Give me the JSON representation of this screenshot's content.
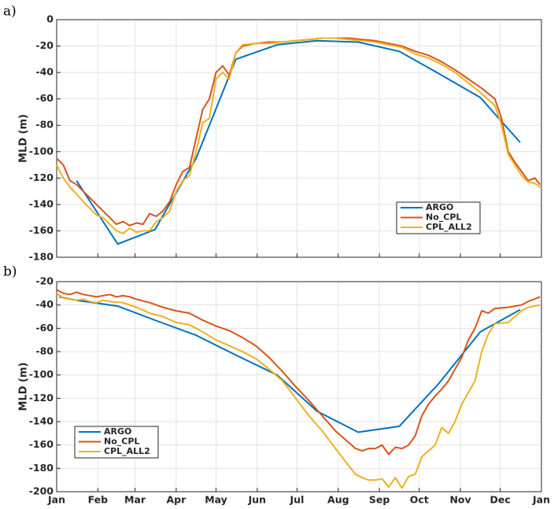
{
  "chart_data": [
    {
      "type": "line",
      "panel_label": "a)",
      "ylabel": "MLD (m)",
      "xlim": [
        0,
        365
      ],
      "xticks": [
        0,
        31,
        59,
        90,
        120,
        151,
        181,
        212,
        243,
        273,
        304,
        334,
        365
      ],
      "ylim": [
        -180,
        0
      ],
      "yticks": [
        0,
        -20,
        -40,
        -60,
        -80,
        -100,
        -120,
        -140,
        -160,
        -180
      ],
      "grid": true,
      "legend": "lower right",
      "series": [
        {
          "name": "ARGO",
          "color": "#0072BD",
          "x": [
            15,
            46,
            74,
            105,
            135,
            166,
            196,
            227,
            258,
            288,
            319,
            349
          ],
          "values": [
            -122,
            -170,
            -159,
            -105,
            -30,
            -19,
            -16,
            -17,
            -24,
            -41,
            -59,
            -93
          ]
        },
        {
          "name": "No_CPL",
          "color": "#D95319",
          "x": [
            0,
            5,
            10,
            15,
            20,
            25,
            30,
            35,
            40,
            45,
            50,
            55,
            60,
            65,
            70,
            75,
            80,
            85,
            90,
            95,
            100,
            105,
            110,
            115,
            120,
            125,
            130,
            135,
            140,
            150,
            160,
            170,
            180,
            190,
            200,
            210,
            220,
            230,
            240,
            250,
            260,
            270,
            280,
            290,
            300,
            310,
            320,
            330,
            335,
            340,
            345,
            350,
            355,
            360,
            364
          ],
          "values": [
            -105,
            -110,
            -122,
            -125,
            -130,
            -135,
            -140,
            -145,
            -150,
            -155,
            -153,
            -156,
            -154,
            -155,
            -147,
            -149,
            -145,
            -138,
            -125,
            -115,
            -112,
            -90,
            -68,
            -60,
            -40,
            -35,
            -42,
            -25,
            -20,
            -18,
            -17,
            -17,
            -16,
            -15,
            -14,
            -14,
            -14,
            -15,
            -16,
            -18,
            -20,
            -24,
            -27,
            -32,
            -38,
            -45,
            -52,
            -60,
            -75,
            -100,
            -108,
            -115,
            -122,
            -120,
            -125
          ]
        },
        {
          "name": "CPL_ALL2",
          "color": "#EDB120",
          "x": [
            0,
            5,
            10,
            15,
            20,
            25,
            30,
            35,
            40,
            45,
            50,
            55,
            60,
            65,
            70,
            75,
            80,
            85,
            90,
            95,
            100,
            105,
            110,
            115,
            120,
            125,
            130,
            135,
            140,
            150,
            160,
            170,
            180,
            190,
            200,
            210,
            220,
            230,
            240,
            250,
            260,
            270,
            280,
            290,
            300,
            310,
            320,
            330,
            335,
            340,
            345,
            350,
            355,
            360,
            364
          ],
          "values": [
            -110,
            -120,
            -127,
            -132,
            -138,
            -143,
            -148,
            -150,
            -155,
            -160,
            -162,
            -158,
            -161,
            -160,
            -160,
            -153,
            -150,
            -145,
            -130,
            -122,
            -118,
            -100,
            -78,
            -75,
            -45,
            -40,
            -45,
            -25,
            -19,
            -18,
            -18,
            -17,
            -16,
            -15,
            -14,
            -14,
            -15,
            -16,
            -17,
            -19,
            -21,
            -26,
            -29,
            -34,
            -40,
            -48,
            -56,
            -65,
            -80,
            -102,
            -110,
            -118,
            -123,
            -124,
            -127
          ]
        }
      ]
    },
    {
      "type": "line",
      "panel_label": "b)",
      "ylabel": "MLD (m)",
      "xlim": [
        0,
        365
      ],
      "xticks": [
        {
          "value": 0,
          "label": "Jan"
        },
        {
          "value": 31,
          "label": "Feb"
        },
        {
          "value": 59,
          "label": "Mar"
        },
        {
          "value": 90,
          "label": "Apr"
        },
        {
          "value": 120,
          "label": "May"
        },
        {
          "value": 151,
          "label": "Jun"
        },
        {
          "value": 181,
          "label": "Jul"
        },
        {
          "value": 212,
          "label": "Aug"
        },
        {
          "value": 243,
          "label": "Sep"
        },
        {
          "value": 273,
          "label": "Oct"
        },
        {
          "value": 304,
          "label": "Nov"
        },
        {
          "value": 334,
          "label": "Dec"
        },
        {
          "value": 365,
          "label": "Jan"
        }
      ],
      "ylim": [
        -200,
        -20
      ],
      "yticks": [
        -20,
        -40,
        -60,
        -80,
        -100,
        -120,
        -140,
        -160,
        -180,
        -200
      ],
      "grid": true,
      "legend": "lower left",
      "series": [
        {
          "name": "ARGO",
          "color": "#0072BD",
          "x": [
            2,
            15,
            46,
            74,
            105,
            135,
            166,
            196,
            227,
            258,
            288,
            319,
            349
          ],
          "values": [
            -33,
            -36,
            -41,
            -53,
            -66,
            -83,
            -100,
            -131,
            -149,
            -144,
            -107,
            -63,
            -44
          ]
        },
        {
          "name": "No_CPL",
          "color": "#D95319",
          "x": [
            0,
            5,
            10,
            15,
            20,
            25,
            30,
            35,
            40,
            45,
            50,
            55,
            60,
            70,
            80,
            90,
            100,
            110,
            120,
            130,
            140,
            150,
            160,
            170,
            180,
            190,
            200,
            210,
            220,
            225,
            230,
            235,
            240,
            245,
            250,
            255,
            260,
            265,
            270,
            275,
            280,
            285,
            290,
            295,
            300,
            305,
            310,
            315,
            320,
            325,
            330,
            340,
            350,
            355,
            364
          ],
          "values": [
            -27,
            -30,
            -31,
            -29,
            -31,
            -32,
            -33,
            -32,
            -31,
            -33,
            -32,
            -33,
            -35,
            -38,
            -42,
            -45,
            -47,
            -53,
            -58,
            -62,
            -68,
            -75,
            -85,
            -97,
            -110,
            -122,
            -135,
            -148,
            -158,
            -163,
            -165,
            -163,
            -163,
            -160,
            -168,
            -162,
            -163,
            -160,
            -152,
            -135,
            -125,
            -118,
            -112,
            -105,
            -95,
            -85,
            -70,
            -60,
            -45,
            -47,
            -43,
            -42,
            -40,
            -37,
            -33
          ]
        },
        {
          "name": "CPL_ALL2",
          "color": "#EDB120",
          "x": [
            0,
            5,
            10,
            15,
            20,
            25,
            30,
            35,
            40,
            50,
            60,
            70,
            80,
            90,
            100,
            110,
            120,
            130,
            140,
            150,
            160,
            170,
            180,
            190,
            200,
            210,
            220,
            225,
            230,
            235,
            240,
            245,
            250,
            255,
            260,
            265,
            270,
            275,
            280,
            285,
            290,
            295,
            300,
            305,
            310,
            315,
            320,
            325,
            330,
            340,
            350,
            355,
            364
          ],
          "values": [
            -30,
            -34,
            -35,
            -36,
            -35,
            -37,
            -38,
            -36,
            -37,
            -38,
            -42,
            -47,
            -50,
            -55,
            -57,
            -63,
            -70,
            -75,
            -80,
            -86,
            -95,
            -105,
            -120,
            -135,
            -148,
            -163,
            -178,
            -185,
            -188,
            -190,
            -190,
            -189,
            -196,
            -188,
            -197,
            -187,
            -185,
            -170,
            -165,
            -160,
            -145,
            -150,
            -140,
            -125,
            -115,
            -105,
            -80,
            -65,
            -56,
            -55,
            -45,
            -42,
            -40
          ]
        }
      ]
    }
  ]
}
